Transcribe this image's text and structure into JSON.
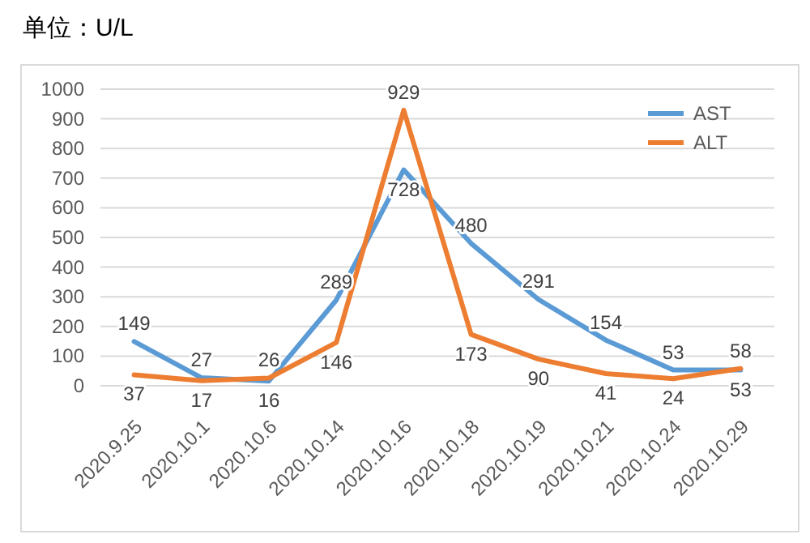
{
  "chart_data": {
    "type": "line",
    "title": "单位：U/L",
    "categories": [
      "2020.9.25",
      "2020.10.1",
      "2020.10.6",
      "2020.10.14",
      "2020.10.16",
      "2020.10.18",
      "2020.10.19",
      "2020.10.21",
      "2020.10.24",
      "2020.10.29"
    ],
    "series": [
      {
        "name": "AST",
        "color": "#5b9bd5",
        "values": [
          149,
          27,
          16,
          289,
          728,
          480,
          291,
          154,
          53,
          53
        ]
      },
      {
        "name": "ALT",
        "color": "#ed7d31",
        "values": [
          37,
          17,
          26,
          146,
          929,
          173,
          90,
          41,
          24,
          58
        ]
      }
    ],
    "ylim": [
      0,
      1000
    ],
    "yticks": [
      0,
      100,
      200,
      300,
      400,
      500,
      600,
      700,
      800,
      900,
      1000
    ],
    "grid": "y",
    "legend": "top right",
    "data_labels": true,
    "marker": "none",
    "line_style": "solid"
  }
}
